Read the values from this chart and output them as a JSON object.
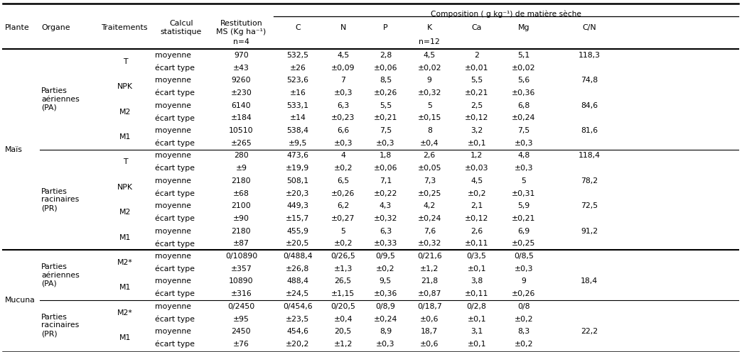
{
  "composition_header": "Composition ( g kg⁻¹) de matière sèche",
  "col_headers": [
    "Plante",
    "Organe",
    "Traitements",
    "Calcul\nstatistique",
    "Restitution\nMS (Kg ha⁻¹)",
    "C",
    "N",
    "P",
    "K",
    "Ca",
    "Mg",
    "C/N"
  ],
  "n4_label": "n=4",
  "n12_label": "n=12",
  "rows": [
    [
      "",
      "",
      "",
      "moyenne",
      "970",
      "532,5",
      "4,5",
      "2,8",
      "4,5",
      "2",
      "5,1",
      "118,3"
    ],
    [
      "",
      "",
      "",
      "écart type",
      "±43",
      "±26",
      "±0,09",
      "±0,06",
      "±0,02",
      "±0,01",
      "±0,02",
      ""
    ],
    [
      "",
      "",
      "",
      "moyenne",
      "9260",
      "523,6",
      "7",
      "8,5",
      "9",
      "5,5",
      "5,6",
      "74,8"
    ],
    [
      "",
      "",
      "",
      "écart type",
      "±230",
      "±16",
      "±0,3",
      "±0,26",
      "±0,32",
      "±0,21",
      "±0,36",
      ""
    ],
    [
      "",
      "",
      "",
      "moyenne",
      "6140",
      "533,1",
      "6,3",
      "5,5",
      "5",
      "2,5",
      "6,8",
      "84,6"
    ],
    [
      "",
      "",
      "",
      "écart type",
      "±184",
      "±14",
      "±0,23",
      "±0,21",
      "±0,15",
      "±0,12",
      "±0,24",
      ""
    ],
    [
      "",
      "",
      "",
      "moyenne",
      "10510",
      "538,4",
      "6,6",
      "7,5",
      "8",
      "3,2",
      "7,5",
      "81,6"
    ],
    [
      "",
      "",
      "",
      "écart type",
      "±265",
      "±9,5",
      "±0,3",
      "±0,3",
      "±0,4",
      "±0,1",
      "±0,3",
      ""
    ],
    [
      "",
      "",
      "",
      "moyenne",
      "280",
      "473,6",
      "4",
      "1,8",
      "2,6",
      "1,2",
      "4,8",
      "118,4"
    ],
    [
      "",
      "",
      "",
      "écart type",
      "±9",
      "±19,9",
      "±0,2",
      "±0,06",
      "±0,05",
      "±0,03",
      "±0,3",
      ""
    ],
    [
      "",
      "",
      "",
      "moyenne",
      "2180",
      "508,1",
      "6,5",
      "7,1",
      "7,3",
      "4,5",
      "5",
      "78,2"
    ],
    [
      "",
      "",
      "",
      "écart type",
      "±68",
      "±20,3",
      "±0,26",
      "±0,22",
      "±0,25",
      "±0,2",
      "±0,31",
      ""
    ],
    [
      "",
      "",
      "",
      "moyenne",
      "2100",
      "449,3",
      "6,2",
      "4,3",
      "4,2",
      "2,1",
      "5,9",
      "72,5"
    ],
    [
      "",
      "",
      "",
      "écart type",
      "±90",
      "±15,7",
      "±0,27",
      "±0,32",
      "±0,24",
      "±0,12",
      "±0,21",
      ""
    ],
    [
      "",
      "",
      "",
      "moyenne",
      "2180",
      "455,9",
      "5",
      "6,3",
      "7,6",
      "2,6",
      "6,9",
      "91,2"
    ],
    [
      "",
      "",
      "",
      "écart type",
      "±87",
      "±20,5",
      "±0,2",
      "±0,33",
      "±0,32",
      "±0,11",
      "±0,25",
      ""
    ],
    [
      "",
      "",
      "",
      "moyenne",
      "0/10890",
      "0/488,4",
      "0/26,5",
      "0/9,5",
      "0/21,6",
      "0/3,5",
      "0/8,5",
      ""
    ],
    [
      "",
      "",
      "",
      "écart type",
      "±357",
      "±26,8",
      "±1,3",
      "±0,2",
      "±1,2",
      "±0,1",
      "±0,3",
      ""
    ],
    [
      "",
      "",
      "",
      "moyenne",
      "10890",
      "488,4",
      "26,5",
      "9,5",
      "21,8",
      "3,8",
      "9",
      "18,4"
    ],
    [
      "",
      "",
      "",
      "écart type",
      "±316",
      "±24,5",
      "±1,15",
      "±0,36",
      "±0,87",
      "±0,11",
      "±0,26",
      ""
    ],
    [
      "",
      "",
      "",
      "moyenne",
      "0/2450",
      "0/454,6",
      "0/20,5",
      "0/8,9",
      "0/18,7",
      "0/2,8",
      "0/8",
      ""
    ],
    [
      "",
      "",
      "",
      "écart type",
      "±95",
      "±23,5",
      "±0,4",
      "±0,24",
      "±0,6",
      "±0,1",
      "±0,2",
      ""
    ],
    [
      "",
      "",
      "",
      "moyenne",
      "2450",
      "454,6",
      "20,5",
      "8,9",
      "18,7",
      "3,1",
      "8,3",
      "22,2"
    ],
    [
      "",
      "",
      "",
      "écart type",
      "±76",
      "±20,2",
      "±1,2",
      "±0,3",
      "±0,6",
      "±0,1",
      "±0,2",
      ""
    ]
  ],
  "plante_spans": [
    [
      0,
      15,
      "Maïs"
    ],
    [
      16,
      23,
      "Mucuna"
    ]
  ],
  "organe_spans": [
    [
      0,
      7,
      "Parties\naériennes\n(PA)"
    ],
    [
      8,
      15,
      "Parties\nracinaires\n(PR)"
    ],
    [
      16,
      19,
      "Parties\naériennes\n(PA)"
    ],
    [
      20,
      23,
      "Parties\nracinaires\n(PR)"
    ]
  ],
  "trait_spans": [
    [
      0,
      1,
      "T"
    ],
    [
      2,
      3,
      "NPK"
    ],
    [
      4,
      5,
      "M2"
    ],
    [
      6,
      7,
      "M1"
    ],
    [
      8,
      9,
      "T"
    ],
    [
      10,
      11,
      "NPK"
    ],
    [
      12,
      13,
      "M2"
    ],
    [
      14,
      15,
      "M1"
    ],
    [
      16,
      17,
      "M2*"
    ],
    [
      18,
      19,
      "M1"
    ],
    [
      20,
      21,
      "M2*"
    ],
    [
      22,
      23,
      "M1"
    ]
  ],
  "bg_color": "#ffffff",
  "text_color": "#000000",
  "font_size": 7.8,
  "header_font_size": 8.2
}
